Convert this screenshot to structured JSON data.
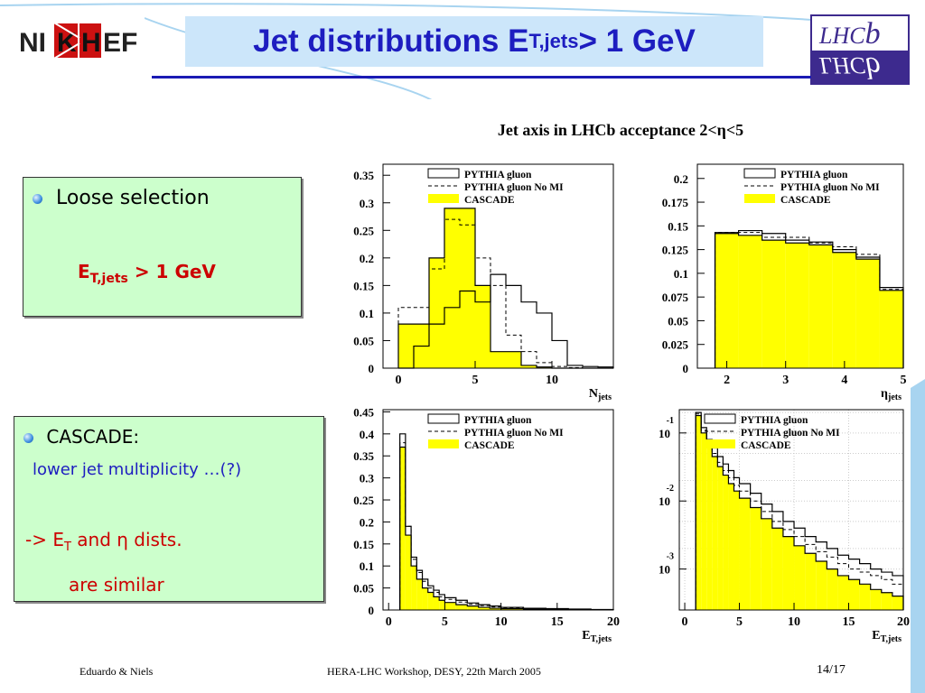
{
  "title": {
    "main": "Jet distributions  E",
    "sub": "T,jets",
    "tail": " > 1 GeV"
  },
  "logos": {
    "left": "NIKHEF",
    "right": "LHCb"
  },
  "box1": {
    "bullet": "Loose selection",
    "cond_main": "E",
    "cond_sub": "T,jets",
    "cond_tail": " > 1 GeV"
  },
  "box2": {
    "bullet": "CASCADE:",
    "line1": "lower jet multiplicity …(?)",
    "line2_a": "-> E",
    "line2_sub": "T",
    "line2_b": " and η dists.",
    "line3": "are similar"
  },
  "plot_title": "Jet axis in LHCb acceptance 2<η<5",
  "legend": {
    "a": "PYTHIA gluon",
    "b": "PYTHIA gluon No MI",
    "c": "CASCADE"
  },
  "footer": {
    "left": "Eduardo & Niels",
    "center": "HERA-LHC Workshop, DESY, 22th March 2005",
    "right": "14/17"
  },
  "colors": {
    "title": "#1d1dc0",
    "fill": "#ffff00",
    "box_bg": "#ccffcc",
    "red_text": "#cc0000"
  },
  "chart_data": [
    {
      "type": "bar",
      "xlabel": "N",
      "xlabel_sub": "jets",
      "xlim": [
        -1,
        14
      ],
      "ylim": [
        0,
        0.37
      ],
      "xticks": [
        0,
        5,
        10
      ],
      "yticks": [
        {
          "v": 0,
          "t": "0"
        },
        {
          "v": 0.05,
          "t": "0.05"
        },
        {
          "v": 0.1,
          "t": "0.1"
        },
        {
          "v": 0.15,
          "t": "0.15"
        },
        {
          "v": 0.2,
          "t": "0.2"
        },
        {
          "v": 0.25,
          "t": "0.25"
        },
        {
          "v": 0.3,
          "t": "0.3"
        },
        {
          "v": 0.35,
          "t": "0.35"
        }
      ],
      "edges": [
        0,
        1,
        2,
        3,
        4,
        5,
        6,
        7,
        8,
        9,
        10,
        11,
        12,
        13,
        14
      ],
      "series": [
        {
          "name": "PYTHIA gluon",
          "values": [
            0,
            0.04,
            0.08,
            0.11,
            0.14,
            0.12,
            0.17,
            0.15,
            0.12,
            0.1,
            0.05,
            0.005,
            0.003,
            0.002
          ]
        },
        {
          "name": "PYTHIA gluon No MI",
          "values": [
            0.11,
            0.11,
            0.18,
            0.27,
            0.26,
            0.2,
            0.15,
            0.06,
            0.03,
            0.01,
            0.003,
            0.001,
            0,
            0
          ]
        },
        {
          "name": "CASCADE",
          "values": [
            0.08,
            0.08,
            0.2,
            0.29,
            0.29,
            0.15,
            0.03,
            0.03,
            0.005,
            0.002,
            0,
            0,
            0,
            0
          ]
        }
      ]
    },
    {
      "type": "bar",
      "xlabel": "η",
      "xlabel_sub": "jets",
      "xlim": [
        1.5,
        5
      ],
      "ylim": [
        0,
        0.215
      ],
      "xticks": [
        2,
        3,
        4,
        5
      ],
      "yticks": [
        {
          "v": 0,
          "t": "0"
        },
        {
          "v": 0.025,
          "t": "0.025"
        },
        {
          "v": 0.05,
          "t": "0.05"
        },
        {
          "v": 0.075,
          "t": "0.075"
        },
        {
          "v": 0.1,
          "t": "0.1"
        },
        {
          "v": 0.125,
          "t": "0.125"
        },
        {
          "v": 0.15,
          "t": "0.15"
        },
        {
          "v": 0.175,
          "t": "0.175"
        },
        {
          "v": 0.2,
          "t": "0.2"
        }
      ],
      "edges": [
        1.8,
        2.2,
        2.6,
        3.0,
        3.4,
        3.8,
        4.2,
        4.6,
        5.0
      ],
      "series": [
        {
          "name": "PYTHIA gluon",
          "values": [
            0.143,
            0.145,
            0.142,
            0.135,
            0.133,
            0.125,
            0.117,
            0.085
          ]
        },
        {
          "name": "PYTHIA gluon No MI",
          "values": [
            0.143,
            0.143,
            0.138,
            0.138,
            0.132,
            0.128,
            0.12,
            0.083
          ]
        },
        {
          "name": "CASCADE",
          "values": [
            0.142,
            0.14,
            0.135,
            0.132,
            0.13,
            0.122,
            0.115,
            0.082
          ]
        }
      ]
    },
    {
      "type": "bar",
      "xlabel": "E",
      "xlabel_sub": "T,jets",
      "xlim": [
        -0.5,
        20
      ],
      "ylim": [
        0,
        0.455
      ],
      "xticks": [
        0,
        5,
        10,
        15,
        20
      ],
      "yticks": [
        {
          "v": 0,
          "t": "0"
        },
        {
          "v": 0.05,
          "t": "0.05"
        },
        {
          "v": 0.1,
          "t": "0.1"
        },
        {
          "v": 0.15,
          "t": "0.15"
        },
        {
          "v": 0.2,
          "t": "0.2"
        },
        {
          "v": 0.25,
          "t": "0.25"
        },
        {
          "v": 0.3,
          "t": "0.3"
        },
        {
          "v": 0.35,
          "t": "0.35"
        },
        {
          "v": 0.4,
          "t": "0.4"
        },
        {
          "v": 0.45,
          "t": "0.45"
        }
      ],
      "edges": [
        1,
        1.5,
        2,
        2.5,
        3,
        3.5,
        4,
        4.5,
        5,
        6,
        7,
        8,
        9,
        10,
        12,
        14,
        16,
        18,
        20
      ],
      "series": [
        {
          "name": "PYTHIA gluon",
          "values": [
            0.4,
            0.19,
            0.12,
            0.09,
            0.07,
            0.055,
            0.045,
            0.035,
            0.028,
            0.022,
            0.016,
            0.012,
            0.009,
            0.006,
            0.004,
            0.003,
            0.002,
            0.001
          ]
        },
        {
          "name": "PYTHIA gluon No MI",
          "values": [
            0.38,
            0.19,
            0.115,
            0.085,
            0.065,
            0.05,
            0.04,
            0.03,
            0.024,
            0.018,
            0.013,
            0.01,
            0.007,
            0.005,
            0.003,
            0.002,
            0.0015,
            0.001
          ]
        },
        {
          "name": "CASCADE",
          "values": [
            0.37,
            0.17,
            0.1,
            0.07,
            0.05,
            0.04,
            0.03,
            0.022,
            0.017,
            0.012,
            0.009,
            0.006,
            0.004,
            0.003,
            0.002,
            0.0015,
            0.001,
            0.0005
          ]
        }
      ]
    },
    {
      "type": "bar",
      "log_y": true,
      "xlabel": "E",
      "xlabel_sub": "T,jets",
      "xlim": [
        -0.5,
        20
      ],
      "ylim": [
        0.00025,
        0.22
      ],
      "xticks": [
        0,
        5,
        10,
        15,
        20
      ],
      "yticks": [
        {
          "v": 0.1,
          "t": "10",
          "e": "-1"
        },
        {
          "v": 0.01,
          "t": "10",
          "e": "-2"
        },
        {
          "v": 0.001,
          "t": "10",
          "e": "-3"
        }
      ],
      "edges": [
        1,
        1.5,
        2,
        2.5,
        3,
        3.5,
        4,
        4.5,
        5,
        6,
        7,
        8,
        9,
        10,
        11,
        12,
        13,
        14,
        15,
        16,
        17,
        18,
        19,
        20
      ],
      "series": [
        {
          "name": "PYTHIA gluon",
          "values": [
            0.2,
            0.12,
            0.08,
            0.06,
            0.045,
            0.035,
            0.028,
            0.022,
            0.018,
            0.013,
            0.009,
            0.007,
            0.005,
            0.004,
            0.003,
            0.0025,
            0.002,
            0.0016,
            0.0014,
            0.0012,
            0.001,
            0.0009,
            0.0008
          ]
        },
        {
          "name": "PYTHIA gluon No MI",
          "values": [
            0.19,
            0.11,
            0.07,
            0.05,
            0.037,
            0.028,
            0.022,
            0.017,
            0.014,
            0.01,
            0.007,
            0.005,
            0.0038,
            0.003,
            0.0023,
            0.0018,
            0.0015,
            0.0012,
            0.001,
            0.0009,
            0.0008,
            0.0007,
            0.0006
          ]
        },
        {
          "name": "CASCADE",
          "values": [
            0.18,
            0.1,
            0.065,
            0.045,
            0.032,
            0.024,
            0.018,
            0.014,
            0.011,
            0.008,
            0.0055,
            0.004,
            0.003,
            0.0022,
            0.0017,
            0.0013,
            0.001,
            0.0008,
            0.0007,
            0.0006,
            0.0005,
            0.00045,
            0.0004
          ]
        }
      ]
    }
  ]
}
